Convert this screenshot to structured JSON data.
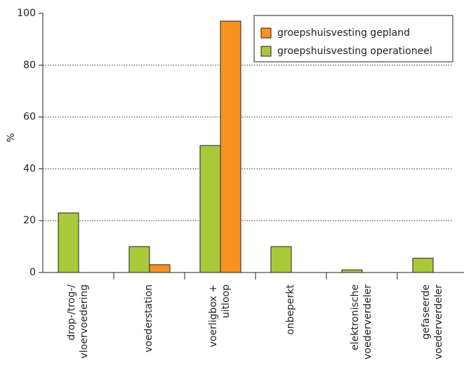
{
  "chart_data": {
    "type": "bar",
    "ylabel": "%",
    "categories": [
      [
        "drop-/trog-/",
        "vloervoedering"
      ],
      [
        "voederstation"
      ],
      [
        "voerligbox +",
        "uitloop"
      ],
      [
        "onbeperkt"
      ],
      [
        "elektronische",
        "voederverdeler"
      ],
      [
        "gefaseerde",
        "voederverdeler"
      ]
    ],
    "series": [
      {
        "name": "groepshuisvesting operationeel",
        "color": "#aac93a",
        "values": [
          23,
          10,
          49,
          10,
          1,
          5.5
        ]
      },
      {
        "name": "groepshuisvesting gepland",
        "color": "#f7931e",
        "values": [
          0,
          3,
          97,
          0,
          0,
          0
        ]
      }
    ],
    "legend_order": [
      1,
      0
    ],
    "ylim": [
      0,
      100
    ],
    "yticks": [
      0,
      20,
      40,
      60,
      80,
      100
    ],
    "grid": true
  }
}
